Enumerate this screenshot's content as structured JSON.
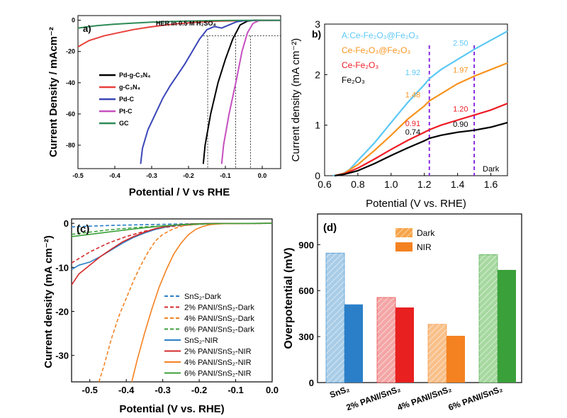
{
  "colors": {
    "black": "#000000",
    "red": "#e8403a",
    "blue": "#3a46b8",
    "magenta": "#c64fc0",
    "green": "#2e8b57",
    "cyan": "#5bc8f5",
    "orange": "#f7931e",
    "redB": "#ee1c25",
    "purple": "#8a2be2",
    "c_blue": "#2a7fc8",
    "c_red": "#d42a2a",
    "c_orange": "#f48221",
    "c_green": "#3aa03a",
    "d_blue": "#2a7fc8",
    "d_red": "#e82020",
    "d_orange": "#f48221",
    "d_green": "#3aa03a",
    "d_blue_light": "#a9cde8",
    "d_red_light": "#f4a6a6",
    "d_orange_light": "#f9c08a",
    "d_green_light": "#a7d9a0"
  },
  "chart_data": [
    {
      "panel": "a)",
      "type": "line",
      "title": "HER in 0.5 M H₂SO₄",
      "xlabel": "Potential / V vs RHE",
      "ylabel": "Current Density / mAcm⁻²",
      "xlim": [
        -0.5,
        0.05
      ],
      "ylim": [
        -95,
        3
      ],
      "xticks": [
        "-0.5",
        "-0.4",
        "-0.3",
        "-0.2",
        "-0.1",
        "0.0"
      ],
      "yticks": [
        "0",
        "-20",
        "-40",
        "-60",
        "-80"
      ],
      "legend_position": "left-center",
      "series": [
        {
          "name": "Pd-g-C₃N₄",
          "color_key": "black",
          "x": [
            -0.16,
            -0.155,
            -0.14,
            -0.12,
            -0.1,
            -0.08,
            -0.06,
            -0.04,
            -0.02,
            0.0,
            0.05
          ],
          "y": [
            -92,
            -80,
            -60,
            -40,
            -25,
            -12,
            -3,
            -0.5,
            0,
            0,
            0
          ]
        },
        {
          "name": "g-C₃N₄",
          "color_key": "red",
          "x": [
            -0.5,
            -0.47,
            -0.43,
            -0.39,
            -0.35,
            -0.31,
            -0.27,
            -0.23,
            -0.18,
            -0.12,
            -0.05,
            0.05
          ],
          "y": [
            -17,
            -13,
            -10,
            -8,
            -6,
            -4.5,
            -3.2,
            -2.2,
            -1.3,
            -0.6,
            -0.2,
            0
          ]
        },
        {
          "name": "Pd-C",
          "color_key": "blue",
          "x": [
            -0.33,
            -0.325,
            -0.31,
            -0.29,
            -0.27,
            -0.25,
            -0.23,
            -0.21,
            -0.19,
            -0.17,
            -0.15,
            -0.13,
            -0.11,
            -0.09,
            -0.07,
            -0.05,
            0.0,
            0.05
          ],
          "y": [
            -92,
            -82,
            -70,
            -60,
            -50,
            -42,
            -35,
            -28,
            -20,
            -12,
            -6,
            -4,
            -5,
            -3,
            -1,
            -0.3,
            0,
            0
          ]
        },
        {
          "name": "Pt-C",
          "color_key": "magenta",
          "x": [
            -0.11,
            -0.105,
            -0.09,
            -0.07,
            -0.055,
            -0.04,
            -0.025,
            -0.01,
            0.0,
            0.05
          ],
          "y": [
            -92,
            -80,
            -60,
            -38,
            -20,
            -8,
            -2,
            -0.3,
            0,
            0
          ]
        },
        {
          "name": "GC",
          "color_key": "green",
          "x": [
            -0.5,
            -0.45,
            -0.4,
            -0.35,
            -0.3,
            -0.25,
            -0.2,
            -0.15,
            -0.1,
            -0.05,
            0.0,
            0.05
          ],
          "y": [
            -5,
            -3.5,
            -2.5,
            -1.8,
            -1.2,
            -0.8,
            -0.5,
            -0.3,
            -0.15,
            -0.05,
            0,
            0
          ]
        }
      ]
    },
    {
      "panel": "b)",
      "type": "line",
      "xlabel": "Potential (V vs. RHE)",
      "ylabel": "Current density (mA cm⁻²)",
      "xlim": [
        0.6,
        1.7
      ],
      "ylim": [
        0,
        3
      ],
      "xticks": [
        "0.6",
        "0.8",
        "1.0",
        "1.2",
        "1.4",
        "1.6"
      ],
      "yticks": [
        "0",
        "1",
        "2",
        "3"
      ],
      "legend_position": "top-left",
      "dashed_markers_x": [
        1.23,
        1.5
      ],
      "note": "Dark",
      "series": [
        {
          "name": "A:Ce-Fe₂O₃@Fe₂O₃",
          "color_key": "cyan",
          "x": [
            0.65,
            0.7,
            0.75,
            0.8,
            0.9,
            1.0,
            1.1,
            1.2,
            1.23,
            1.3,
            1.4,
            1.5,
            1.6,
            1.7
          ],
          "y": [
            0,
            0.02,
            0.12,
            0.3,
            0.65,
            1.05,
            1.45,
            1.8,
            1.92,
            2.1,
            2.3,
            2.5,
            2.68,
            2.86
          ]
        },
        {
          "name": "Ce-Fe₂O₃@Fe₂O₃",
          "color_key": "orange",
          "x": [
            0.66,
            0.72,
            0.8,
            0.9,
            1.0,
            1.1,
            1.2,
            1.23,
            1.3,
            1.4,
            1.5,
            1.6,
            1.7
          ],
          "y": [
            0,
            0.05,
            0.22,
            0.5,
            0.8,
            1.12,
            1.38,
            1.48,
            1.62,
            1.82,
            1.97,
            2.1,
            2.23
          ]
        },
        {
          "name": "Ce-Fe₂O₃",
          "color_key": "redB",
          "x": [
            0.66,
            0.72,
            0.8,
            0.9,
            1.0,
            1.1,
            1.2,
            1.23,
            1.3,
            1.4,
            1.5,
            1.6,
            1.7
          ],
          "y": [
            0,
            0.04,
            0.15,
            0.33,
            0.52,
            0.7,
            0.86,
            0.91,
            1.0,
            1.1,
            1.2,
            1.3,
            1.43
          ]
        },
        {
          "name": "Fe₂O₃",
          "color_key": "black",
          "x": [
            0.66,
            0.72,
            0.8,
            0.9,
            1.0,
            1.1,
            1.2,
            1.23,
            1.3,
            1.4,
            1.5,
            1.6,
            1.7
          ],
          "y": [
            0,
            0.03,
            0.1,
            0.24,
            0.4,
            0.55,
            0.69,
            0.74,
            0.8,
            0.86,
            0.9,
            0.96,
            1.05
          ]
        }
      ],
      "annotations": [
        {
          "text": "1.92",
          "x": 1.23,
          "y": 1.92,
          "color_key": "cyan"
        },
        {
          "text": "2.50",
          "x": 1.5,
          "y": 2.5,
          "color_key": "cyan"
        },
        {
          "text": "1.48",
          "x": 1.23,
          "y": 1.48,
          "color_key": "orange"
        },
        {
          "text": "1.97",
          "x": 1.5,
          "y": 1.97,
          "color_key": "orange"
        },
        {
          "text": "0.91",
          "x": 1.23,
          "y": 0.91,
          "color_key": "redB"
        },
        {
          "text": "1.20",
          "x": 1.5,
          "y": 1.2,
          "color_key": "redB"
        },
        {
          "text": "0.74",
          "x": 1.23,
          "y": 0.74,
          "color_key": "black"
        },
        {
          "text": "0.90",
          "x": 1.5,
          "y": 0.9,
          "color_key": "black"
        }
      ]
    },
    {
      "panel": "(c)",
      "type": "line",
      "xlabel": "Potential (V vs. RHE)",
      "ylabel": "Current density (mA cm⁻²)",
      "xlim": [
        -0.55,
        0.0
      ],
      "ylim": [
        -36,
        1
      ],
      "xticks": [
        "-0.5",
        "-0.4",
        "-0.3",
        "-0.2",
        "-0.1",
        "0.0"
      ],
      "yticks": [
        "0",
        "-10",
        "-20",
        "-30"
      ],
      "legend_position": "bottom-right",
      "series": [
        {
          "name": "SnS₂-Dark",
          "color_key": "c_blue",
          "dashed": true,
          "x": [
            -0.55,
            -0.45,
            -0.35,
            -0.25,
            -0.15,
            0.0
          ],
          "y": [
            -0.8,
            -0.5,
            -0.3,
            -0.15,
            -0.05,
            0
          ]
        },
        {
          "name": "2% PANI/SnS₂-Dark",
          "color_key": "c_red",
          "dashed": true,
          "x": [
            -0.55,
            -0.5,
            -0.45,
            -0.4,
            -0.35,
            -0.3,
            -0.25,
            -0.2,
            -0.15,
            0.0
          ],
          "y": [
            -9,
            -6.5,
            -4.5,
            -3,
            -1.8,
            -1,
            -0.5,
            -0.2,
            -0.05,
            0
          ]
        },
        {
          "name": "4% PANI/SnS₂-Dark",
          "color_key": "c_orange",
          "dashed": true,
          "x": [
            -0.475,
            -0.46,
            -0.44,
            -0.42,
            -0.4,
            -0.38,
            -0.36,
            -0.34,
            -0.32,
            -0.3,
            -0.27,
            -0.24,
            -0.2,
            -0.15,
            0.0
          ],
          "y": [
            -36,
            -32,
            -26,
            -21,
            -17,
            -13,
            -9.5,
            -6.5,
            -4,
            -2.5,
            -1.2,
            -0.5,
            -0.15,
            -0.03,
            0
          ]
        },
        {
          "name": "6% PANI/SnS₂-Dark",
          "color_key": "c_green",
          "dashed": true,
          "x": [
            -0.55,
            -0.45,
            -0.35,
            -0.25,
            -0.15,
            0.0
          ],
          "y": [
            -2.5,
            -1.5,
            -0.8,
            -0.35,
            -0.1,
            0
          ]
        },
        {
          "name": "SnS₂-NIR",
          "color_key": "c_blue",
          "dashed": false,
          "x": [
            -0.55,
            -0.53,
            -0.5,
            -0.47,
            -0.44,
            -0.41,
            -0.38,
            -0.35,
            -0.32,
            -0.29,
            -0.26,
            -0.22,
            -0.18,
            0.0
          ],
          "y": [
            -10.5,
            -9.5,
            -8.8,
            -7.5,
            -6,
            -4.5,
            -3.2,
            -2.2,
            -1.4,
            -0.8,
            -0.4,
            -0.15,
            -0.05,
            0
          ]
        },
        {
          "name": "2% PANI/SnS₂-NIR",
          "color_key": "c_red",
          "dashed": false,
          "x": [
            -0.55,
            -0.53,
            -0.5,
            -0.47,
            -0.44,
            -0.41,
            -0.38,
            -0.35,
            -0.32,
            -0.29,
            -0.26,
            -0.22,
            -0.18,
            0.0
          ],
          "y": [
            -14,
            -11.5,
            -9.5,
            -7.5,
            -5.8,
            -4.2,
            -3,
            -2,
            -1.2,
            -0.7,
            -0.35,
            -0.12,
            -0.04,
            0
          ]
        },
        {
          "name": "4% PANI/SnS₂-NIR",
          "color_key": "c_orange",
          "dashed": false,
          "x": [
            -0.385,
            -0.37,
            -0.35,
            -0.33,
            -0.31,
            -0.29,
            -0.27,
            -0.25,
            -0.23,
            -0.21,
            -0.19,
            -0.17,
            -0.14,
            -0.1,
            0.0
          ],
          "y": [
            -36,
            -31,
            -25,
            -19.5,
            -14.5,
            -10.5,
            -7,
            -4.5,
            -2.6,
            -1.4,
            -0.7,
            -0.3,
            -0.1,
            -0.03,
            0
          ]
        },
        {
          "name": "6% PANI/SnS₂-NIR",
          "color_key": "c_green",
          "dashed": false,
          "x": [
            -0.55,
            -0.5,
            -0.45,
            -0.4,
            -0.35,
            -0.3,
            -0.25,
            -0.2,
            -0.15,
            0.0
          ],
          "y": [
            -3,
            -2.5,
            -2,
            -1.5,
            -1,
            -0.6,
            -0.3,
            -0.12,
            -0.04,
            0
          ]
        }
      ]
    },
    {
      "panel": "(d)",
      "type": "bar",
      "ylabel": "Overpotential (mV)",
      "ylim": [
        0,
        1100
      ],
      "yticks": [
        "0",
        "300",
        "600",
        "900"
      ],
      "categories": [
        "SnS₂",
        "2% PANI/SnS₂",
        "4% PANI/SnS₂",
        "6% PANI/SnS₂"
      ],
      "legend_position": "top-center",
      "series": [
        {
          "name": "Dark",
          "values": [
            845,
            555,
            380,
            835
          ]
        },
        {
          "name": "NIR",
          "values": [
            510,
            490,
            305,
            735
          ]
        }
      ],
      "bar_color_keys": [
        "d_blue",
        "d_red",
        "d_orange",
        "d_green"
      ],
      "bar_light_keys": [
        "d_blue_light",
        "d_red_light",
        "d_orange_light",
        "d_green_light"
      ],
      "legend_colors": [
        "#f7a54a",
        "#f48221"
      ]
    }
  ]
}
